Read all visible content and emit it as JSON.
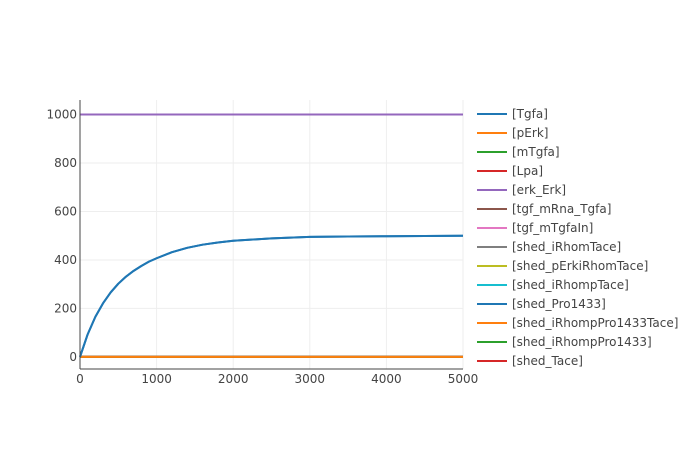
{
  "chart_data": {
    "type": "line",
    "title": "",
    "xlabel": "",
    "ylabel": "",
    "xlim": [
      0,
      5000
    ],
    "ylim": [
      -50,
      1060
    ],
    "x_ticks": [
      0,
      1000,
      2000,
      3000,
      4000,
      5000
    ],
    "y_ticks": [
      0,
      200,
      400,
      600,
      800,
      1000
    ],
    "grid": true,
    "legend_position": "right",
    "x": [
      0,
      100,
      200,
      300,
      400,
      500,
      600,
      700,
      800,
      900,
      1000,
      1200,
      1400,
      1600,
      1800,
      2000,
      2500,
      3000,
      3500,
      4000,
      4500,
      5000
    ],
    "series": [
      {
        "name": "[Tgfa]",
        "color": "#1f77b4",
        "values": [
          0,
          93,
          165,
          221,
          266,
          302,
          331,
          355,
          375,
          393,
          407,
          432,
          450,
          463,
          472,
          479,
          489,
          495,
          497,
          498,
          499,
          500
        ]
      },
      {
        "name": "[pErk]",
        "color": "#ff7f0e",
        "values": [
          0,
          0,
          0,
          0,
          0,
          0,
          0,
          0,
          0,
          0,
          0,
          0,
          0,
          0,
          0,
          0,
          0,
          0,
          0,
          0,
          0,
          0
        ]
      },
      {
        "name": "[mTgfa]",
        "color": "#2ca02c",
        "values": [
          0,
          0,
          0,
          0,
          0,
          0,
          0,
          0,
          0,
          0,
          0,
          0,
          0,
          0,
          0,
          0,
          0,
          0,
          0,
          0,
          0,
          0
        ]
      },
      {
        "name": "[Lpa]",
        "color": "#d62728",
        "values": [
          0,
          0,
          0,
          0,
          0,
          0,
          0,
          0,
          0,
          0,
          0,
          0,
          0,
          0,
          0,
          0,
          0,
          0,
          0,
          0,
          0,
          0
        ]
      },
      {
        "name": "[erk_Erk]",
        "color": "#9467bd",
        "values": [
          1000,
          1000,
          1000,
          1000,
          1000,
          1000,
          1000,
          1000,
          1000,
          1000,
          1000,
          1000,
          1000,
          1000,
          1000,
          1000,
          1000,
          1000,
          1000,
          1000,
          1000,
          1000
        ]
      },
      {
        "name": "[tgf_mRna_Tgfa]",
        "color": "#8c564b",
        "values": [
          0,
          0,
          0,
          0,
          0,
          0,
          0,
          0,
          0,
          0,
          0,
          0,
          0,
          0,
          0,
          0,
          0,
          0,
          0,
          0,
          0,
          0
        ]
      },
      {
        "name": "[tgf_mTgfaIn]",
        "color": "#e377c2",
        "values": [
          0,
          0,
          0,
          0,
          0,
          0,
          0,
          0,
          0,
          0,
          0,
          0,
          0,
          0,
          0,
          0,
          0,
          0,
          0,
          0,
          0,
          0
        ]
      },
      {
        "name": "[shed_iRhomTace]",
        "color": "#7f7f7f",
        "values": [
          0,
          0,
          0,
          0,
          0,
          0,
          0,
          0,
          0,
          0,
          0,
          0,
          0,
          0,
          0,
          0,
          0,
          0,
          0,
          0,
          0,
          0
        ]
      },
      {
        "name": "[shed_pErkiRhomTace]",
        "color": "#bcbd22",
        "values": [
          0,
          0,
          0,
          0,
          0,
          0,
          0,
          0,
          0,
          0,
          0,
          0,
          0,
          0,
          0,
          0,
          0,
          0,
          0,
          0,
          0,
          0
        ]
      },
      {
        "name": "[shed_iRhompTace]",
        "color": "#17becf",
        "values": [
          0,
          0,
          0,
          0,
          0,
          0,
          0,
          0,
          0,
          0,
          0,
          0,
          0,
          0,
          0,
          0,
          0,
          0,
          0,
          0,
          0,
          0
        ]
      },
      {
        "name": "[shed_Pro1433]",
        "color": "#1f77b4",
        "values": [
          0,
          0,
          0,
          0,
          0,
          0,
          0,
          0,
          0,
          0,
          0,
          0,
          0,
          0,
          0,
          0,
          0,
          0,
          0,
          0,
          0,
          0
        ]
      },
      {
        "name": "[shed_iRhompPro1433Tace]",
        "color": "#ff7f0e",
        "values": [
          0,
          0,
          0,
          0,
          0,
          0,
          0,
          0,
          0,
          0,
          0,
          0,
          0,
          0,
          0,
          0,
          0,
          0,
          0,
          0,
          0,
          0
        ]
      },
      {
        "name": "[shed_iRhompPro1433]",
        "color": "#2ca02c",
        "values": [
          0,
          0,
          0,
          0,
          0,
          0,
          0,
          0,
          0,
          0,
          0,
          0,
          0,
          0,
          0,
          0,
          0,
          0,
          0,
          0,
          0,
          0
        ]
      },
      {
        "name": "[shed_Tace]",
        "color": "#d62728",
        "values": [
          0,
          0,
          0,
          0,
          0,
          0,
          0,
          0,
          0,
          0,
          0,
          0,
          0,
          0,
          0,
          0,
          0,
          0,
          0,
          0,
          0,
          0
        ]
      }
    ]
  }
}
